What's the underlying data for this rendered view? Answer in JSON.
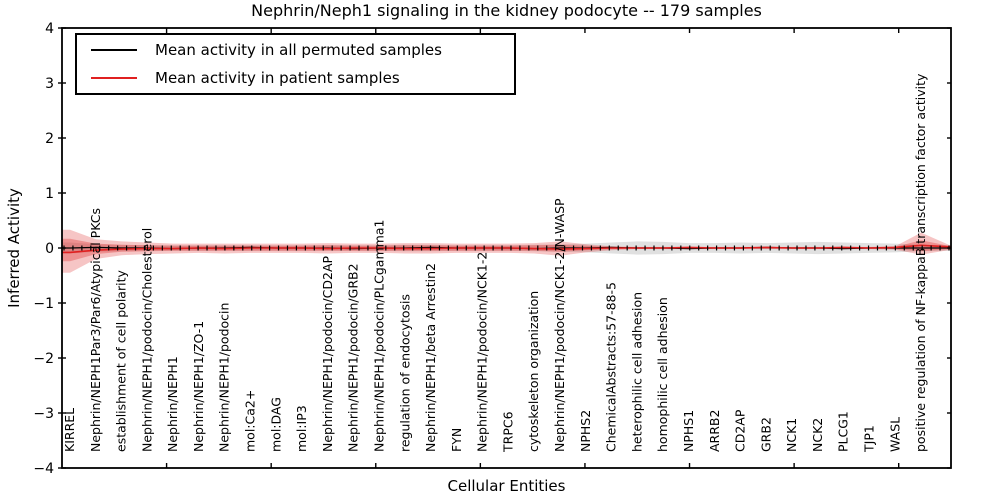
{
  "title": "Nephrin/Neph1 signaling in the kidney podocyte -- 179 samples",
  "chart_data": {
    "type": "line",
    "title": "Nephrin/Neph1 signaling in the kidney podocyte -- 179 samples",
    "xlabel": "Cellular Entities",
    "ylabel": "Inferred Activity",
    "ylim": [
      -4,
      4
    ],
    "xlim": [
      0,
      34
    ],
    "yticks": [
      "4",
      "3",
      "2",
      "1",
      "0",
      "−1",
      "−2",
      "−3",
      "−4"
    ],
    "ytick_values": [
      4,
      3,
      2,
      1,
      0,
      -1,
      -2,
      -3,
      -4
    ],
    "xtick_values": [
      4,
      8,
      12,
      16,
      20,
      24,
      28,
      32
    ],
    "grid": false,
    "legend_position": "upper left",
    "categories": [
      "KIRREL",
      "Nephrin/NEPH1Par3/Par6/Atypical PKCs",
      "establishment of cell polarity",
      "Nephrin/NEPH1/podocin/Cholesterol",
      "Nephrin/NEPH1",
      "Nephrin/NEPH1/ZO-1",
      "Nephrin/NEPH1/podocin",
      "mol:Ca2+",
      "mol:DAG",
      "mol:IP3",
      "Nephrin/NEPH1/podocin/CD2AP",
      "Nephrin/NEPH1/podocin/GRB2",
      "Nephrin/NEPH1/podocin/PLCgamma1",
      "regulation of endocytosis",
      "Nephrin/NEPH1/beta Arrestin2",
      "FYN",
      "Nephrin/NEPH1/podocin/NCK1-2",
      "TRPC6",
      "cytoskeleton organization",
      "Nephrin/NEPH1/podocin/NCK1-2/N-WASP",
      "NPHS2",
      "ChemicalAbstracts:57-88-5",
      "heterophilic cell adhesion",
      "homophilic cell adhesion",
      "NPHS1",
      "ARRB2",
      "CD2AP",
      "GRB2",
      "NCK1",
      "NCK2",
      "PLCG1",
      "TJP1",
      "WASL",
      "positive regulation of NF-kappaB transcription factor activity"
    ],
    "x": [
      -0.31,
      0,
      1,
      2,
      3,
      4,
      5,
      6,
      7,
      8,
      9,
      10,
      11,
      12,
      13,
      14,
      15,
      16,
      17,
      18,
      19,
      20,
      21,
      22,
      23,
      24,
      25,
      26,
      27,
      28,
      29,
      30,
      31,
      32,
      33,
      34.16
    ],
    "series": [
      {
        "name": "Mean activity in all permuted samples",
        "color": "#000000",
        "linewidth": 1.2,
        "values": [
          0,
          0,
          0.01,
          0,
          0,
          -0.01,
          0,
          0,
          0.01,
          0,
          0,
          0,
          -0.01,
          0,
          0,
          0.01,
          0,
          0,
          0,
          -0.01,
          0,
          0,
          0.01,
          0,
          0,
          -0.01,
          0,
          0,
          0.01,
          0,
          0,
          -0.01,
          0,
          0,
          0,
          0
        ]
      },
      {
        "name": "Mean activity in patient samples",
        "color": "#e02020",
        "linewidth": 1.6,
        "values": [
          -0.08,
          -0.08,
          -0.04,
          -0.02,
          -0.01,
          -0.01,
          0,
          -0.01,
          0,
          0,
          0,
          -0.01,
          0,
          0,
          -0.01,
          -0.01,
          0,
          0,
          0,
          -0.01,
          -0.02,
          -0.01,
          0,
          0,
          0,
          0.01,
          0,
          0,
          0.01,
          0,
          0,
          0.01,
          0,
          0.01,
          0.05,
          0.02
        ]
      }
    ],
    "bands": [
      {
        "name": "permuted-samples-range",
        "color": "#999999",
        "opacity": 0.3,
        "lower": [
          -0.1,
          -0.1,
          -0.07,
          -0.06,
          -0.05,
          -0.05,
          -0.05,
          -0.05,
          -0.05,
          -0.05,
          -0.05,
          -0.05,
          -0.05,
          -0.05,
          -0.06,
          -0.06,
          -0.05,
          -0.05,
          -0.05,
          -0.06,
          -0.07,
          -0.08,
          -0.1,
          -0.12,
          -0.11,
          -0.09,
          -0.09,
          -0.1,
          -0.09,
          -0.1,
          -0.11,
          -0.1,
          -0.09,
          -0.08,
          -0.06,
          -0.05
        ],
        "upper": [
          0.1,
          0.1,
          0.07,
          0.06,
          0.05,
          0.05,
          0.05,
          0.05,
          0.05,
          0.05,
          0.05,
          0.05,
          0.05,
          0.05,
          0.06,
          0.06,
          0.05,
          0.05,
          0.05,
          0.06,
          0.07,
          0.08,
          0.1,
          0.12,
          0.11,
          0.09,
          0.09,
          0.1,
          0.09,
          0.1,
          0.11,
          0.1,
          0.09,
          0.08,
          0.06,
          0.05
        ]
      },
      {
        "name": "patient-samples-range-outer",
        "color": "#e03030",
        "opacity": 0.28,
        "lower": [
          -0.45,
          -0.45,
          -0.2,
          -0.13,
          -0.11,
          -0.1,
          -0.09,
          -0.1,
          -0.09,
          -0.09,
          -0.09,
          -0.1,
          -0.09,
          -0.09,
          -0.1,
          -0.1,
          -0.09,
          -0.09,
          -0.09,
          -0.1,
          -0.14,
          -0.08,
          -0.04,
          -0.02,
          -0.02,
          -0.02,
          -0.02,
          -0.02,
          -0.02,
          -0.02,
          -0.02,
          -0.02,
          -0.02,
          -0.03,
          -0.12,
          -0.03
        ],
        "upper": [
          0.33,
          0.33,
          0.16,
          0.12,
          0.1,
          0.08,
          0.08,
          0.08,
          0.08,
          0.08,
          0.08,
          0.09,
          0.08,
          0.08,
          0.09,
          0.09,
          0.08,
          0.08,
          0.08,
          0.09,
          0.12,
          0.07,
          0.03,
          0.02,
          0.02,
          0.02,
          0.02,
          0.02,
          0.02,
          0.02,
          0.02,
          0.02,
          0.02,
          0.03,
          0.28,
          0.04
        ]
      },
      {
        "name": "patient-samples-range-inner",
        "color": "#e03030",
        "opacity": 0.35,
        "lower": [
          -0.24,
          -0.24,
          -0.11,
          -0.07,
          -0.06,
          -0.05,
          -0.05,
          -0.05,
          -0.05,
          -0.05,
          -0.05,
          -0.05,
          -0.05,
          -0.05,
          -0.05,
          -0.05,
          -0.05,
          -0.05,
          -0.05,
          -0.05,
          -0.07,
          -0.04,
          -0.02,
          -0.01,
          -0.01,
          -0.01,
          -0.01,
          -0.01,
          -0.01,
          -0.01,
          -0.01,
          -0.01,
          -0.01,
          -0.02,
          -0.06,
          -0.02
        ],
        "upper": [
          0.17,
          0.17,
          0.08,
          0.06,
          0.05,
          0.04,
          0.04,
          0.04,
          0.04,
          0.04,
          0.04,
          0.05,
          0.04,
          0.04,
          0.05,
          0.05,
          0.04,
          0.04,
          0.04,
          0.05,
          0.06,
          0.04,
          0.02,
          0.01,
          0.01,
          0.01,
          0.01,
          0.01,
          0.01,
          0.01,
          0.01,
          0.01,
          0.01,
          0.02,
          0.14,
          0.03
        ]
      }
    ],
    "markers": {
      "shape": "vline",
      "count": 100,
      "color": "#000000"
    }
  },
  "legend": {
    "items": [
      {
        "label": "Mean activity in all permuted samples",
        "color": "#000000"
      },
      {
        "label": "Mean activity in patient samples",
        "color": "#e02020"
      }
    ]
  }
}
